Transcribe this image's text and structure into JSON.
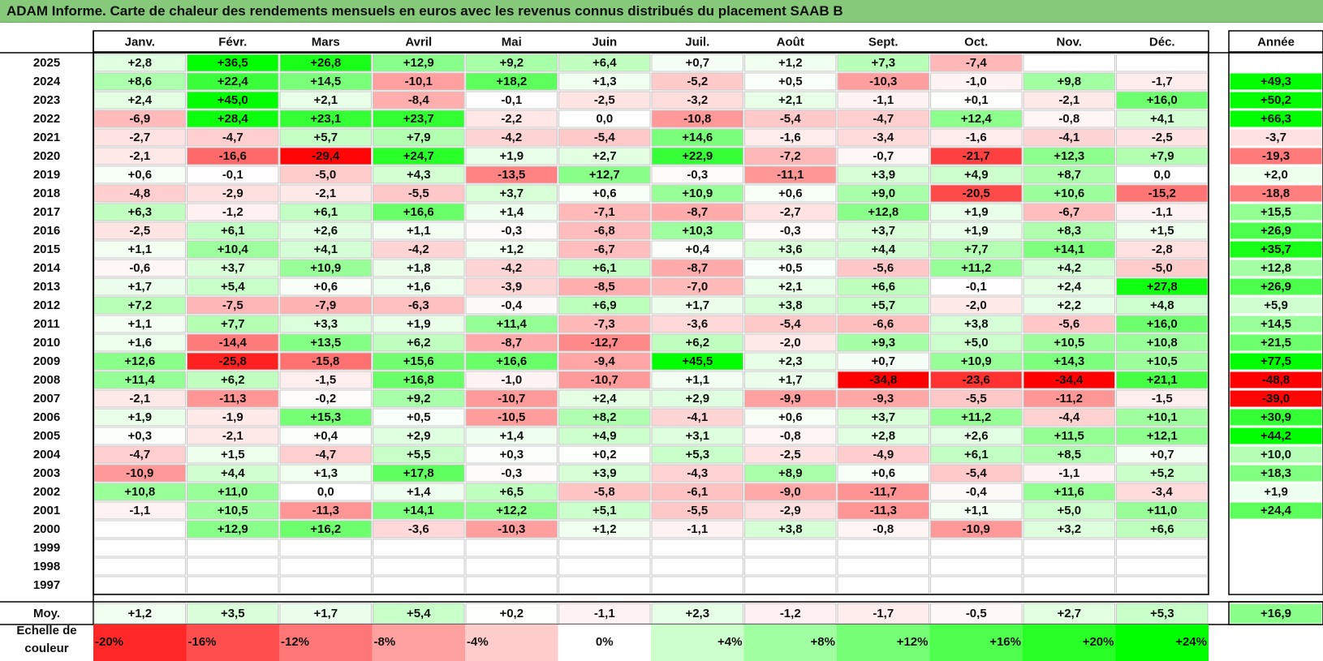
{
  "title": "ADAM Informe. Carte de chaleur des rendements mensuels en euros avec les revenus connus distribués du placement SAAB B",
  "chart_data": {
    "type": "heatmap",
    "months": [
      "Janv.",
      "Févr.",
      "Mars",
      "Avril",
      "Mai",
      "Juin",
      "Juil.",
      "Août",
      "Sept.",
      "Oct.",
      "Nov.",
      "Déc."
    ],
    "year_header": "Année",
    "avg_label": "Moy.",
    "scale_label": "Echelle de couleur",
    "rows": [
      {
        "year": "2025",
        "values": [
          2.8,
          36.5,
          26.8,
          12.9,
          9.2,
          6.4,
          0.7,
          1.2,
          7.3,
          -7.4,
          null,
          null
        ],
        "annual": null
      },
      {
        "year": "2024",
        "values": [
          8.6,
          22.4,
          14.5,
          -10.1,
          18.2,
          1.3,
          -5.2,
          0.5,
          -10.3,
          -1.0,
          9.8,
          -1.7
        ],
        "annual": 49.3
      },
      {
        "year": "2023",
        "values": [
          2.4,
          45.0,
          2.1,
          -8.4,
          -0.1,
          -2.5,
          -3.2,
          2.1,
          -1.1,
          0.1,
          -2.1,
          16.0
        ],
        "annual": 50.2
      },
      {
        "year": "2022",
        "values": [
          -6.9,
          28.4,
          23.1,
          23.7,
          -2.2,
          -0.0,
          -10.8,
          -5.4,
          -4.7,
          12.4,
          -0.8,
          4.1
        ],
        "annual": 66.3
      },
      {
        "year": "2021",
        "values": [
          -2.7,
          -4.7,
          5.7,
          7.9,
          -4.2,
          -5.4,
          14.6,
          -1.6,
          -3.4,
          -1.6,
          -4.1,
          -2.5
        ],
        "annual": -3.7
      },
      {
        "year": "2020",
        "values": [
          -2.1,
          -16.6,
          -29.4,
          24.7,
          1.9,
          2.7,
          22.9,
          -7.2,
          -0.7,
          -21.7,
          12.3,
          7.9
        ],
        "annual": -19.3
      },
      {
        "year": "2019",
        "values": [
          0.6,
          -0.1,
          -5.0,
          4.3,
          -13.5,
          12.7,
          -0.3,
          -11.1,
          3.9,
          4.9,
          8.7,
          -0.0
        ],
        "annual": 2.0
      },
      {
        "year": "2018",
        "values": [
          -4.8,
          -2.9,
          -2.1,
          -5.5,
          3.7,
          0.6,
          10.9,
          0.6,
          9.0,
          -20.5,
          10.6,
          -15.2
        ],
        "annual": -18.8
      },
      {
        "year": "2017",
        "values": [
          6.3,
          -1.2,
          6.1,
          16.6,
          1.4,
          -7.1,
          -8.7,
          -2.7,
          12.8,
          1.9,
          -6.7,
          -1.1
        ],
        "annual": 15.5
      },
      {
        "year": "2016",
        "values": [
          -2.5,
          6.1,
          2.6,
          1.1,
          -0.3,
          -6.8,
          10.3,
          -0.3,
          3.7,
          1.9,
          8.3,
          1.5
        ],
        "annual": 26.9
      },
      {
        "year": "2015",
        "values": [
          1.1,
          10.4,
          4.1,
          -4.2,
          1.2,
          -6.7,
          0.4,
          3.6,
          4.4,
          7.7,
          14.1,
          -2.8
        ],
        "annual": 35.7
      },
      {
        "year": "2014",
        "values": [
          -0.6,
          3.7,
          10.9,
          1.8,
          -4.2,
          6.1,
          -8.7,
          0.5,
          -5.6,
          11.2,
          4.2,
          -5.0
        ],
        "annual": 12.8
      },
      {
        "year": "2013",
        "values": [
          1.7,
          5.4,
          0.6,
          1.6,
          -3.9,
          -8.5,
          -7.0,
          2.1,
          6.6,
          -0.1,
          2.4,
          27.8
        ],
        "annual": 26.9
      },
      {
        "year": "2012",
        "values": [
          7.2,
          -7.5,
          -7.9,
          -6.3,
          -0.4,
          6.9,
          1.7,
          3.8,
          5.7,
          -2.0,
          2.2,
          4.8
        ],
        "annual": 5.9
      },
      {
        "year": "2011",
        "values": [
          1.1,
          7.7,
          3.3,
          1.9,
          11.4,
          -7.3,
          -3.6,
          -5.4,
          -6.6,
          3.8,
          -5.6,
          16.0
        ],
        "annual": 14.5
      },
      {
        "year": "2010",
        "values": [
          1.6,
          -14.4,
          13.5,
          6.2,
          -8.7,
          -12.7,
          6.2,
          -2.0,
          9.3,
          5.0,
          10.5,
          10.8
        ],
        "annual": 21.5
      },
      {
        "year": "2009",
        "values": [
          12.6,
          -25.8,
          -15.8,
          15.6,
          16.6,
          -9.4,
          45.5,
          2.3,
          0.7,
          10.9,
          14.3,
          10.5
        ],
        "annual": 77.5
      },
      {
        "year": "2008",
        "values": [
          11.4,
          6.2,
          -1.5,
          16.8,
          -1.0,
          -10.7,
          1.1,
          1.7,
          -34.8,
          -23.6,
          -34.4,
          21.1
        ],
        "annual": -48.8
      },
      {
        "year": "2007",
        "values": [
          -2.1,
          -11.3,
          -0.2,
          9.2,
          -10.7,
          2.4,
          2.9,
          -9.9,
          -9.3,
          -5.5,
          -11.2,
          -1.5
        ],
        "annual": -39.0
      },
      {
        "year": "2006",
        "values": [
          1.9,
          -1.9,
          15.3,
          0.5,
          -10.5,
          8.2,
          -4.1,
          0.6,
          3.7,
          11.2,
          -4.4,
          10.1
        ],
        "annual": 30.9
      },
      {
        "year": "2005",
        "values": [
          0.3,
          -2.1,
          0.4,
          2.9,
          1.4,
          4.9,
          3.1,
          -0.8,
          2.8,
          2.6,
          11.5,
          12.1
        ],
        "annual": 44.2
      },
      {
        "year": "2004",
        "values": [
          -4.7,
          1.5,
          -4.7,
          5.5,
          0.3,
          0.2,
          5.3,
          -2.5,
          -4.9,
          6.1,
          8.5,
          0.7
        ],
        "annual": 10.0
      },
      {
        "year": "2003",
        "values": [
          -10.9,
          4.4,
          1.3,
          17.8,
          -0.3,
          3.9,
          -4.3,
          8.9,
          0.6,
          -5.4,
          -1.1,
          5.2
        ],
        "annual": 18.3
      },
      {
        "year": "2002",
        "values": [
          10.8,
          11.0,
          0.0,
          1.4,
          6.5,
          -5.8,
          -6.1,
          -9.0,
          -11.7,
          -0.4,
          11.6,
          -3.4
        ],
        "annual": 1.9
      },
      {
        "year": "2001",
        "values": [
          -1.1,
          10.5,
          -11.3,
          14.1,
          12.2,
          5.1,
          -5.5,
          -2.9,
          -11.3,
          1.1,
          5.0,
          11.0
        ],
        "annual": 24.4
      },
      {
        "year": "2000",
        "values": [
          null,
          12.9,
          16.2,
          -3.6,
          -10.3,
          1.2,
          -1.1,
          3.8,
          -0.8,
          -10.9,
          3.2,
          6.6
        ],
        "annual": null
      },
      {
        "year": "1999",
        "values": [
          null,
          null,
          null,
          null,
          null,
          null,
          null,
          null,
          null,
          null,
          null,
          null
        ],
        "annual": null
      },
      {
        "year": "1998",
        "values": [
          null,
          null,
          null,
          null,
          null,
          null,
          null,
          null,
          null,
          null,
          null,
          null
        ],
        "annual": null
      },
      {
        "year": "1997",
        "values": [
          null,
          null,
          null,
          null,
          null,
          null,
          null,
          null,
          null,
          null,
          null,
          null
        ],
        "annual": null
      }
    ],
    "averages": [
      1.2,
      3.5,
      1.7,
      5.4,
      0.2,
      -1.1,
      2.3,
      -1.2,
      -1.7,
      -0.5,
      2.7,
      5.3
    ],
    "annual_average": 16.9,
    "scale": [
      {
        "label": "-20%",
        "value": -20
      },
      {
        "label": "-16%",
        "value": -16
      },
      {
        "label": "-12%",
        "value": -12
      },
      {
        "label": "-8%",
        "value": -8
      },
      {
        "label": "-4%",
        "value": -4
      },
      {
        "label": "0%",
        "value": 0
      },
      {
        "label": "+4%",
        "value": 4
      },
      {
        "label": "+8%",
        "value": 8
      },
      {
        "label": "+12%",
        "value": 12
      },
      {
        "label": "+16%",
        "value": 16
      },
      {
        "label": "+20%",
        "value": 20
      },
      {
        "label": "+24%",
        "value": 24
      }
    ],
    "colors": {
      "negative_max": "#ff0000",
      "neutral": "#ffffff",
      "positive_max": "#00ff00",
      "title_bar": "#86c97a"
    }
  }
}
